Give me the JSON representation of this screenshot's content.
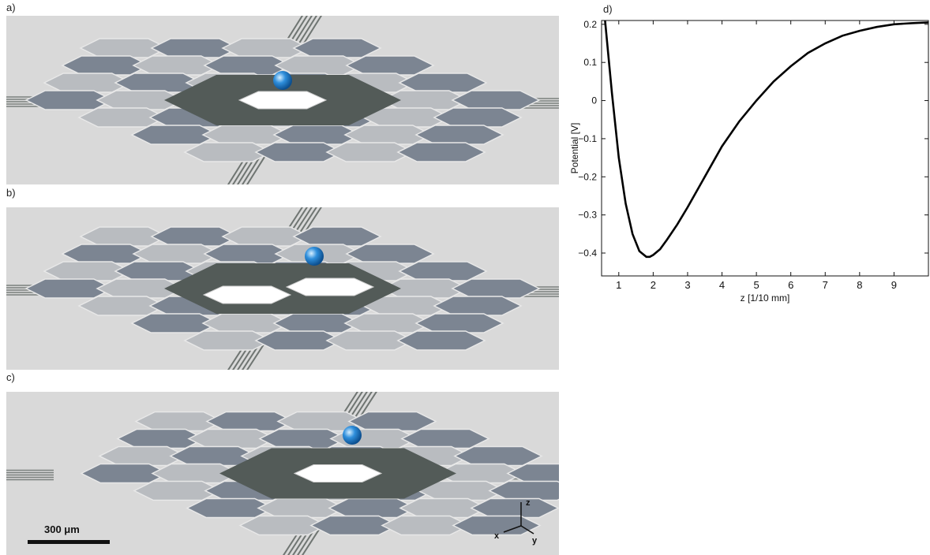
{
  "figure": {
    "panels": [
      {
        "label": "a)",
        "gap_count": 1
      },
      {
        "label": "b)",
        "gap_count": 2
      },
      {
        "label": "c)",
        "gap_count": 1
      }
    ],
    "scale_bar_label": "300 μm",
    "axes_triad": {
      "x": "x",
      "y": "y",
      "z": "z"
    },
    "colors": {
      "background": "#d9d9d9",
      "electrode_dark": "#7c8592",
      "electrode_light": "#b9bcc0",
      "ground_plane": "#535b58",
      "trap_gap": "#ffffff",
      "ion": "#2f8fdc"
    },
    "ion_icon": "sphere-icon"
  },
  "chart_data": {
    "type": "line",
    "label": "d)",
    "xlabel": "z [1/10 mm]",
    "ylabel": "Potential [V]",
    "xlim": [
      0.5,
      10
    ],
    "ylim": [
      -0.46,
      0.21
    ],
    "xticks": [
      1,
      2,
      3,
      4,
      5,
      6,
      7,
      8,
      9
    ],
    "yticks": [
      0.2,
      0.1,
      0,
      -0.1,
      -0.2,
      -0.3,
      -0.4
    ],
    "ytick_labels": [
      "0.2",
      "0.1",
      "0",
      "−0.1",
      "−0.2",
      "−0.3",
      "−0.4"
    ],
    "grid": false,
    "series": [
      {
        "x": [
          0.6,
          0.8,
          1.0,
          1.2,
          1.4,
          1.6,
          1.8,
          1.9,
          2.0,
          2.2,
          2.4,
          2.7,
          3.0,
          3.5,
          4.0,
          4.5,
          5.0,
          5.5,
          6.0,
          6.5,
          7.0,
          7.5,
          8.0,
          8.5,
          9.0,
          9.5,
          10.0
        ],
        "y": [
          0.22,
          0.02,
          -0.15,
          -0.27,
          -0.35,
          -0.395,
          -0.41,
          -0.41,
          -0.405,
          -0.39,
          -0.365,
          -0.325,
          -0.28,
          -0.2,
          -0.12,
          -0.055,
          0.0,
          0.05,
          0.09,
          0.125,
          0.15,
          0.17,
          0.183,
          0.193,
          0.2,
          0.203,
          0.205
        ]
      }
    ]
  }
}
